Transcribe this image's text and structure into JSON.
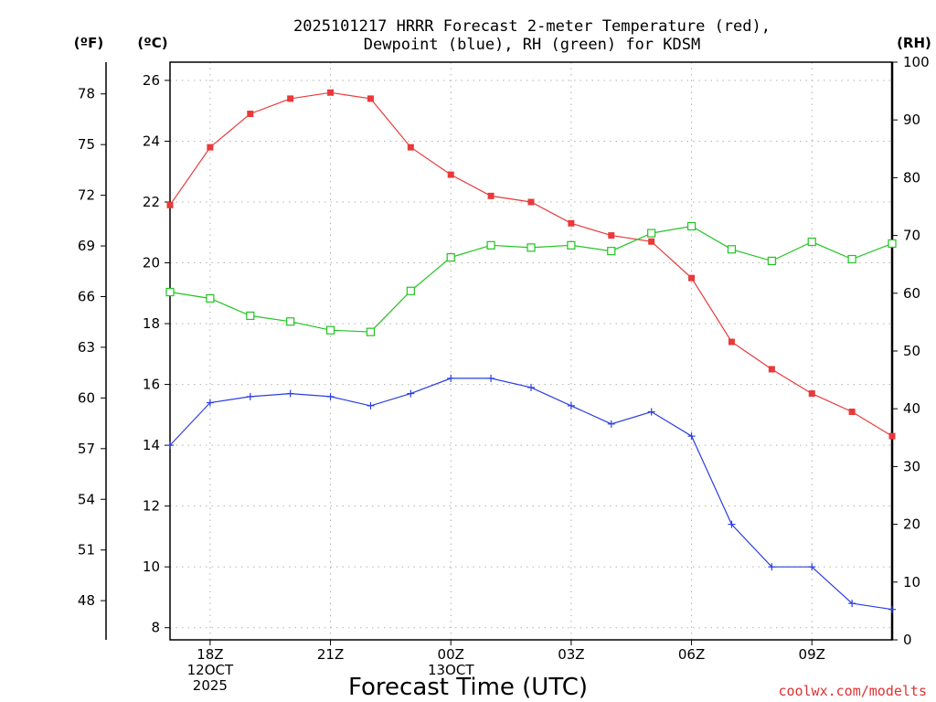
{
  "chart_data": {
    "type": "line",
    "title_lines": [
      "2025101217 HRRR Forecast 2-meter Temperature (red),",
      "Dewpoint (blue), RH (green) for KDSM"
    ],
    "xlabel": "Forecast Time (UTC)",
    "credit": "coolwx.com/modelts",
    "units": {
      "left_f": "(ºF)",
      "left_c": "(ºC)",
      "right": "(RH)"
    },
    "x_hours": [
      17,
      18,
      19,
      20,
      21,
      22,
      23,
      24,
      25,
      26,
      27,
      28,
      29,
      30,
      31,
      32,
      33,
      34,
      35
    ],
    "xlim": [
      17,
      35
    ],
    "x_ticks": [
      {
        "hour": 18,
        "lines": [
          "18Z",
          "12OCT",
          "2025"
        ]
      },
      {
        "hour": 21,
        "lines": [
          "21Z"
        ]
      },
      {
        "hour": 24,
        "lines": [
          "00Z",
          "13OCT"
        ]
      },
      {
        "hour": 27,
        "lines": [
          "03Z"
        ]
      },
      {
        "hour": 30,
        "lines": [
          "06Z"
        ]
      },
      {
        "hour": 33,
        "lines": [
          "09Z"
        ]
      }
    ],
    "y_celsius": {
      "range": [
        7.6,
        26.6
      ],
      "ticks": [
        8,
        10,
        12,
        14,
        16,
        18,
        20,
        22,
        24,
        26
      ]
    },
    "y_fahrenheit": {
      "ticks": [
        48,
        51,
        54,
        57,
        60,
        63,
        66,
        69,
        72,
        75,
        78
      ]
    },
    "y_rh": {
      "range": [
        0,
        100
      ],
      "ticks": [
        0,
        10,
        20,
        30,
        40,
        50,
        60,
        70,
        80,
        90,
        100
      ]
    },
    "series": [
      {
        "name": "Temperature",
        "axis": "celsius",
        "color": "#e83a3a",
        "marker": "filled-square",
        "values": [
          21.9,
          23.8,
          24.9,
          25.4,
          25.6,
          25.4,
          23.8,
          22.9,
          22.2,
          22.0,
          21.3,
          20.9,
          20.7,
          19.5,
          17.4,
          16.5,
          15.7,
          15.1,
          14.3
        ]
      },
      {
        "name": "Dewpoint",
        "axis": "celsius",
        "color": "#2a3ee0",
        "marker": "plus",
        "values": [
          14.0,
          15.4,
          15.6,
          15.7,
          15.6,
          15.3,
          15.7,
          16.2,
          16.2,
          15.9,
          15.3,
          14.7,
          15.1,
          14.3,
          11.4,
          10.0,
          10.0,
          8.8,
          8.6
        ]
      },
      {
        "name": "RH",
        "axis": "rh",
        "color": "#22c422",
        "marker": "open-square",
        "values": [
          60.2,
          59.1,
          56.1,
          55.1,
          53.6,
          53.3,
          60.4,
          66.2,
          68.3,
          67.9,
          68.3,
          67.3,
          70.4,
          71.6,
          67.6,
          65.6,
          68.9,
          65.9,
          68.6
        ]
      }
    ]
  }
}
